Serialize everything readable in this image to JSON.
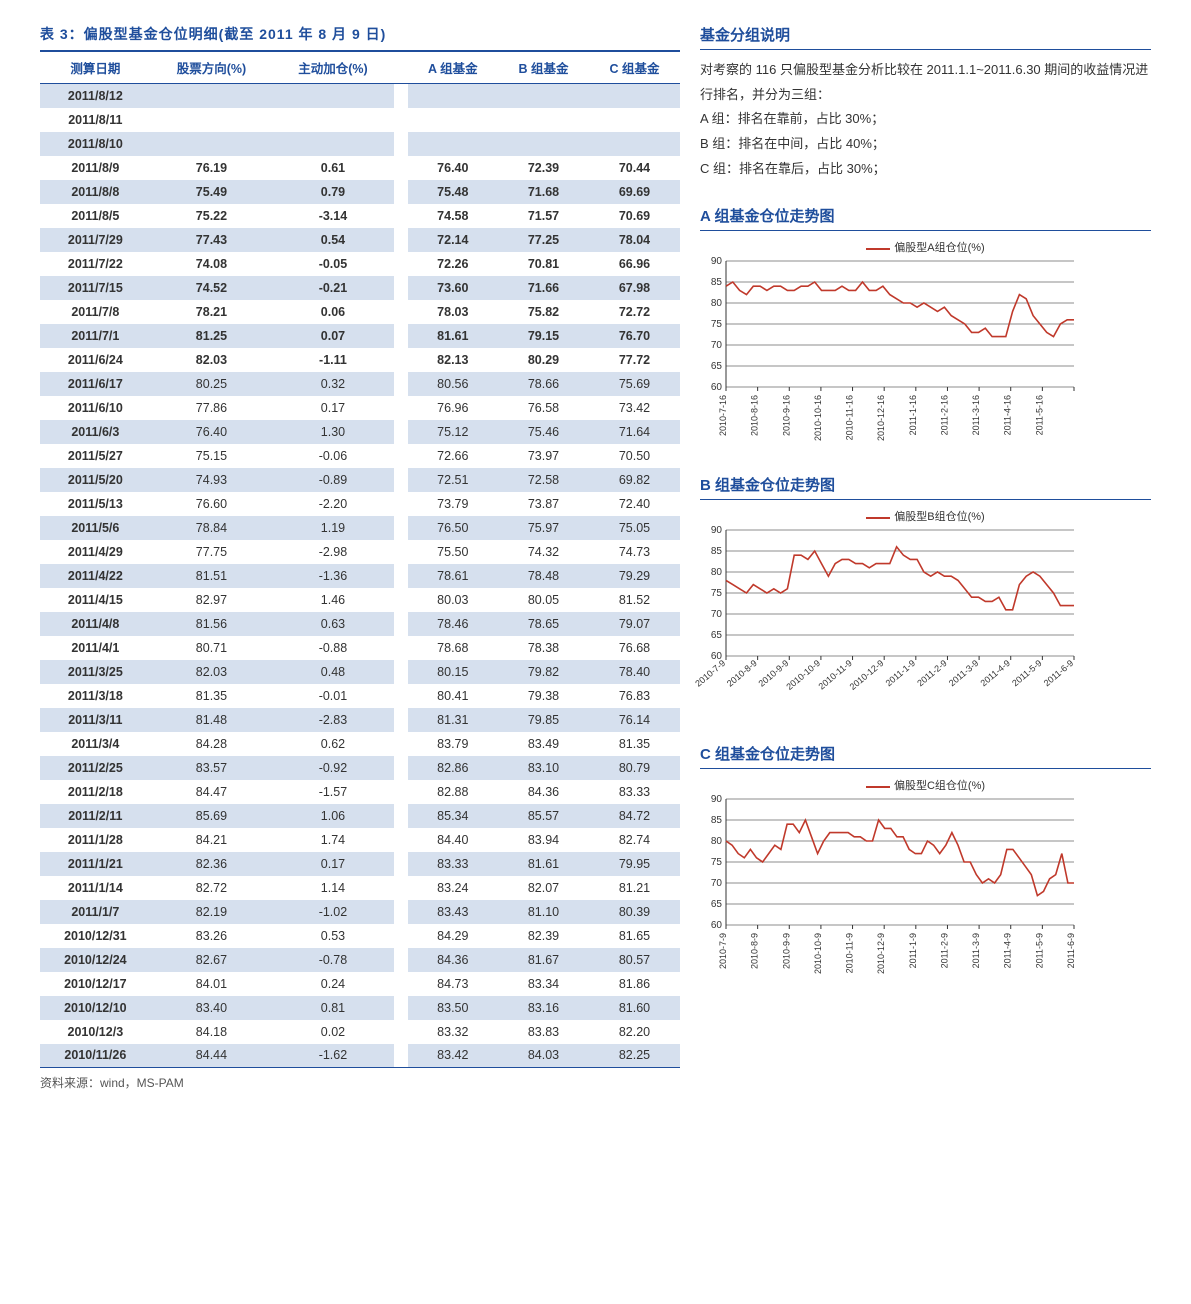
{
  "title": "表 3：偏股型基金仓位明细(截至 2011 年 8 月 9 日)",
  "columns": [
    "测算日期",
    "股票方向(%)",
    "主动加仓(%)",
    "A 组基金",
    "B 组基金",
    "C 组基金"
  ],
  "gap_after_col": 2,
  "bold_rows": 12,
  "rows": [
    [
      "2011/8/12",
      "",
      "",
      "",
      "",
      ""
    ],
    [
      "2011/8/11",
      "",
      "",
      "",
      "",
      ""
    ],
    [
      "2011/8/10",
      "",
      "",
      "",
      "",
      ""
    ],
    [
      "2011/8/9",
      "76.19",
      "0.61",
      "76.40",
      "72.39",
      "70.44"
    ],
    [
      "2011/8/8",
      "75.49",
      "0.79",
      "75.48",
      "71.68",
      "69.69"
    ],
    [
      "2011/8/5",
      "75.22",
      "-3.14",
      "74.58",
      "71.57",
      "70.69"
    ],
    [
      "2011/7/29",
      "77.43",
      "0.54",
      "72.14",
      "77.25",
      "78.04"
    ],
    [
      "2011/7/22",
      "74.08",
      "-0.05",
      "72.26",
      "70.81",
      "66.96"
    ],
    [
      "2011/7/15",
      "74.52",
      "-0.21",
      "73.60",
      "71.66",
      "67.98"
    ],
    [
      "2011/7/8",
      "78.21",
      "0.06",
      "78.03",
      "75.82",
      "72.72"
    ],
    [
      "2011/7/1",
      "81.25",
      "0.07",
      "81.61",
      "79.15",
      "76.70"
    ],
    [
      "2011/6/24",
      "82.03",
      "-1.11",
      "82.13",
      "80.29",
      "77.72"
    ],
    [
      "2011/6/17",
      "80.25",
      "0.32",
      "80.56",
      "78.66",
      "75.69"
    ],
    [
      "2011/6/10",
      "77.86",
      "0.17",
      "76.96",
      "76.58",
      "73.42"
    ],
    [
      "2011/6/3",
      "76.40",
      "1.30",
      "75.12",
      "75.46",
      "71.64"
    ],
    [
      "2011/5/27",
      "75.15",
      "-0.06",
      "72.66",
      "73.97",
      "70.50"
    ],
    [
      "2011/5/20",
      "74.93",
      "-0.89",
      "72.51",
      "72.58",
      "69.82"
    ],
    [
      "2011/5/13",
      "76.60",
      "-2.20",
      "73.79",
      "73.87",
      "72.40"
    ],
    [
      "2011/5/6",
      "78.84",
      "1.19",
      "76.50",
      "75.97",
      "75.05"
    ],
    [
      "2011/4/29",
      "77.75",
      "-2.98",
      "75.50",
      "74.32",
      "74.73"
    ],
    [
      "2011/4/22",
      "81.51",
      "-1.36",
      "78.61",
      "78.48",
      "79.29"
    ],
    [
      "2011/4/15",
      "82.97",
      "1.46",
      "80.03",
      "80.05",
      "81.52"
    ],
    [
      "2011/4/8",
      "81.56",
      "0.63",
      "78.46",
      "78.65",
      "79.07"
    ],
    [
      "2011/4/1",
      "80.71",
      "-0.88",
      "78.68",
      "78.38",
      "76.68"
    ],
    [
      "2011/3/25",
      "82.03",
      "0.48",
      "80.15",
      "79.82",
      "78.40"
    ],
    [
      "2011/3/18",
      "81.35",
      "-0.01",
      "80.41",
      "79.38",
      "76.83"
    ],
    [
      "2011/3/11",
      "81.48",
      "-2.83",
      "81.31",
      "79.85",
      "76.14"
    ],
    [
      "2011/3/4",
      "84.28",
      "0.62",
      "83.79",
      "83.49",
      "81.35"
    ],
    [
      "2011/2/25",
      "83.57",
      "-0.92",
      "82.86",
      "83.10",
      "80.79"
    ],
    [
      "2011/2/18",
      "84.47",
      "-1.57",
      "82.88",
      "84.36",
      "83.33"
    ],
    [
      "2011/2/11",
      "85.69",
      "1.06",
      "85.34",
      "85.57",
      "84.72"
    ],
    [
      "2011/1/28",
      "84.21",
      "1.74",
      "84.40",
      "83.94",
      "82.74"
    ],
    [
      "2011/1/21",
      "82.36",
      "0.17",
      "83.33",
      "81.61",
      "79.95"
    ],
    [
      "2011/1/14",
      "82.72",
      "1.14",
      "83.24",
      "82.07",
      "81.21"
    ],
    [
      "2011/1/7",
      "82.19",
      "-1.02",
      "83.43",
      "81.10",
      "80.39"
    ],
    [
      "2010/12/31",
      "83.26",
      "0.53",
      "84.29",
      "82.39",
      "81.65"
    ],
    [
      "2010/12/24",
      "82.67",
      "-0.78",
      "84.36",
      "81.67",
      "80.57"
    ],
    [
      "2010/12/17",
      "84.01",
      "0.24",
      "84.73",
      "83.34",
      "81.86"
    ],
    [
      "2010/12/10",
      "83.40",
      "0.81",
      "83.50",
      "83.16",
      "81.60"
    ],
    [
      "2010/12/3",
      "84.18",
      "0.02",
      "83.32",
      "83.83",
      "82.20"
    ],
    [
      "2010/11/26",
      "84.44",
      "-1.62",
      "83.42",
      "84.03",
      "82.25"
    ]
  ],
  "source": "资料来源：wind，MS-PAM",
  "side": {
    "group_title": "基金分组说明",
    "group_text": "对考察的 116 只偏股型基金分析比较在 2011.1.1~2011.6.30 期间的收益情况进行排名，并分为三组：\nA 组：排名在靠前，占比 30%；\nB 组：排名在中间，占比 40%；\nC 组：排名在靠后，占比 30%；"
  },
  "charts": [
    {
      "title": "A 组基金仓位走势图",
      "legend": "偏股型A组仓位(%)",
      "type": "line",
      "ylim": [
        60,
        90
      ],
      "ytick_step": 5,
      "series_color": "#c0392b",
      "line_width": 1.6,
      "grid_color": "#666666",
      "background_color": "#ffffff",
      "xlabels": [
        "2010-7-16",
        "2010-8-16",
        "2010-9-16",
        "2010-10-16",
        "2010-11-16",
        "2010-12-16",
        "2011-1-16",
        "2011-2-16",
        "2011-3-16",
        "2011-4-16",
        "2011-5-16",
        ""
      ],
      "xlabel_rotate": -90,
      "values": [
        84,
        85,
        83,
        82,
        84,
        84,
        83,
        84,
        84,
        83,
        83,
        84,
        84,
        85,
        83,
        83,
        83,
        84,
        83,
        83,
        85,
        83,
        83,
        84,
        82,
        81,
        80,
        80,
        79,
        80,
        79,
        78,
        79,
        77,
        76,
        75,
        73,
        73,
        74,
        72,
        72,
        72,
        78,
        82,
        81,
        77,
        75,
        73,
        72,
        75,
        76,
        76
      ]
    },
    {
      "title": "B 组基金仓位走势图",
      "legend": "偏股型B组仓位(%)",
      "type": "line",
      "ylim": [
        60,
        90
      ],
      "ytick_step": 5,
      "series_color": "#c0392b",
      "line_width": 1.6,
      "grid_color": "#666666",
      "background_color": "#ffffff",
      "xlabels": [
        "2010-7-9",
        "2010-8-9",
        "2010-9-9",
        "2010-10-9",
        "2010-11-9",
        "2010-12-9",
        "2011-1-9",
        "2011-2-9",
        "2011-3-9",
        "2011-4-9",
        "2011-5-9",
        "2011-6-9"
      ],
      "xlabel_rotate": -40,
      "values": [
        78,
        77,
        76,
        75,
        77,
        76,
        75,
        76,
        75,
        76,
        84,
        84,
        83,
        85,
        82,
        79,
        82,
        83,
        83,
        82,
        82,
        81,
        82,
        82,
        82,
        86,
        84,
        83,
        83,
        80,
        79,
        80,
        79,
        79,
        78,
        76,
        74,
        74,
        73,
        73,
        74,
        71,
        71,
        77,
        79,
        80,
        79,
        77,
        75,
        72,
        72,
        72
      ]
    },
    {
      "title": "C 组基金仓位走势图",
      "legend": "偏股型C组仓位(%)",
      "type": "line",
      "ylim": [
        60,
        90
      ],
      "ytick_step": 5,
      "series_color": "#c0392b",
      "line_width": 1.6,
      "grid_color": "#666666",
      "background_color": "#ffffff",
      "xlabels": [
        "2010-7-9",
        "2010-8-9",
        "2010-9-9",
        "2010-10-9",
        "2010-11-9",
        "2010-12-9",
        "2011-1-9",
        "2011-2-9",
        "2011-3-9",
        "2011-4-9",
        "2011-5-9",
        "2011-6-9"
      ],
      "xlabel_rotate": -90,
      "values": [
        80,
        79,
        77,
        76,
        78,
        76,
        75,
        77,
        79,
        78,
        84,
        84,
        82,
        85,
        81,
        77,
        80,
        82,
        82,
        82,
        82,
        81,
        81,
        80,
        80,
        85,
        83,
        83,
        81,
        81,
        78,
        77,
        77,
        80,
        79,
        77,
        79,
        82,
        79,
        75,
        75,
        72,
        70,
        71,
        70,
        72,
        78,
        78,
        76,
        74,
        72,
        67,
        68,
        71,
        72,
        77,
        70,
        70
      ]
    }
  ],
  "colors": {
    "heading": "#1f4e9c",
    "row_even": "#d6e0ee",
    "row_odd": "#ffffff",
    "series": "#c0392b"
  }
}
